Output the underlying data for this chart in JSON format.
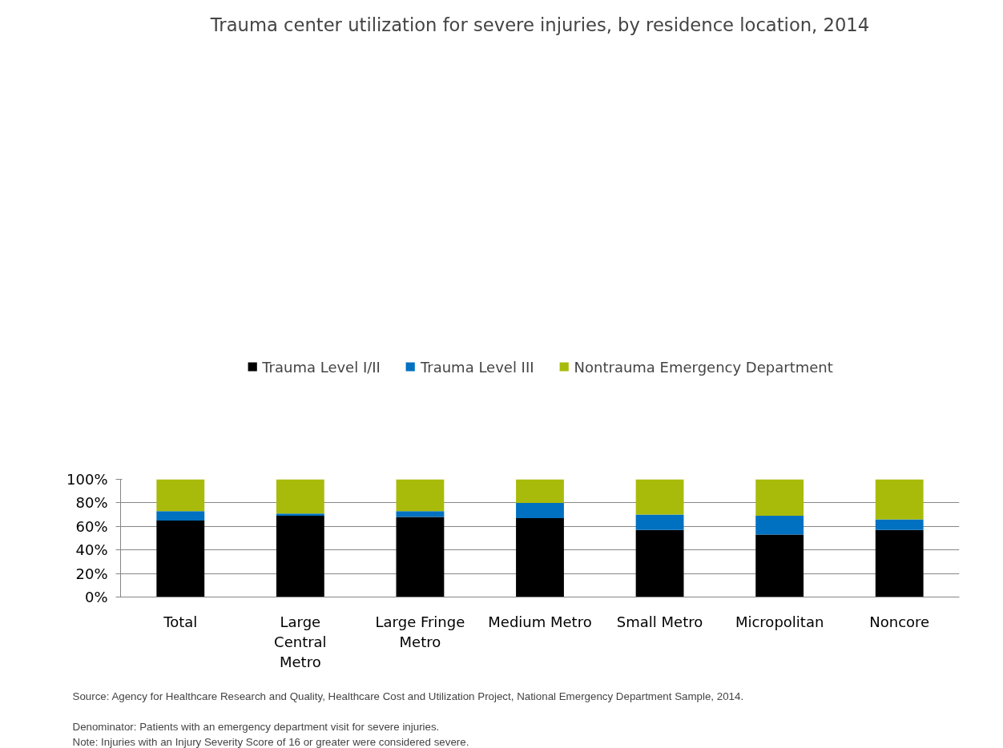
{
  "chart_data": {
    "type": "bar",
    "stacked": true,
    "title": "Trauma center utilization for severe injuries, by residence location, 2014",
    "categories": [
      "Total",
      "Large Central Metro",
      "Large Fringe Metro",
      "Medium Metro",
      "Small Metro",
      "Micropolitan",
      "Noncore"
    ],
    "series": [
      {
        "name": "Trauma Level I/II",
        "color": "#000000",
        "values": [
          65,
          69,
          68,
          67,
          57,
          53,
          57
        ]
      },
      {
        "name": "Trauma Level III",
        "color": "#0070c0",
        "values": [
          8,
          2,
          5,
          13,
          13,
          16,
          9
        ]
      },
      {
        "name": "Nontrauma Emergency Department",
        "color": "#a9bb0a",
        "values": [
          27,
          29,
          27,
          20,
          30,
          31,
          34
        ]
      }
    ],
    "ylim": [
      0,
      100
    ],
    "yticks": [
      {
        "value": 0,
        "label": "0%"
      },
      {
        "value": 20,
        "label": "20%"
      },
      {
        "value": 40,
        "label": "40%"
      },
      {
        "value": 60,
        "label": "60%"
      },
      {
        "value": 80,
        "label": "80%"
      },
      {
        "value": 100,
        "label": "100%"
      }
    ],
    "grid": "y",
    "legend": "top",
    "annotations": [
      "Source: Agency for Healthcare Research and Quality, Healthcare Cost and Utilization Project, National Emergency Department Sample, 2014.",
      "Denominator: Patients with an emergency department visit for severe injuries.",
      "Note: Injuries with an Injury Severity Score of 16 or greater were considered severe."
    ]
  }
}
